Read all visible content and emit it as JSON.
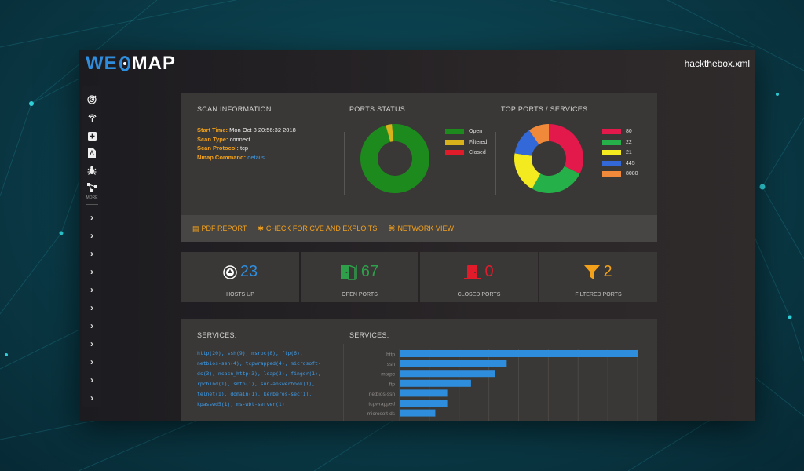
{
  "app": {
    "logo_left": "WE",
    "logo_right": "MAP",
    "filename": "hackthebox.xml"
  },
  "sidebar": {
    "icons": [
      "radar-icon",
      "antenna-icon",
      "plus-box-icon",
      "pdf-file-icon",
      "bug-icon",
      "network-icon"
    ],
    "more_label": "MORE",
    "arrow_count": 11
  },
  "scan_info": {
    "title": "SCAN INFORMATION",
    "start_time_label": "Start Time:",
    "start_time": "Mon Oct 8 20:56:32 2018",
    "scan_type_label": "Scan Type:",
    "scan_type": "connect",
    "scan_protocol_label": "Scan Protocol:",
    "scan_protocol": "tcp",
    "nmap_command_label": "Nmap Command:",
    "nmap_command": "details"
  },
  "ports_status": {
    "title": "PORTS STATUS",
    "legend": [
      {
        "label": "Open",
        "color": "#1d8a1d",
        "value": 67
      },
      {
        "label": "Filtered",
        "color": "#d8b21a",
        "value": 2
      },
      {
        "label": "Closed",
        "color": "#e21b2b",
        "value": 0
      }
    ]
  },
  "top_ports": {
    "title": "TOP PORTS / SERVICES",
    "legend": [
      {
        "label": "80",
        "color": "#e3184b",
        "value": 20
      },
      {
        "label": "22",
        "color": "#25b04a",
        "value": 16
      },
      {
        "label": "21",
        "color": "#f4ea20",
        "value": 12
      },
      {
        "label": "445",
        "color": "#3368d8",
        "value": 8
      },
      {
        "label": "8080",
        "color": "#f08a3a",
        "value": 6
      }
    ]
  },
  "actions": {
    "pdf_report": "PDF REPORT",
    "check_cve": "CHECK FOR CVE AND EXPLOITS",
    "network_view": "NETWORK VIEW"
  },
  "stats": [
    {
      "value": "23",
      "label": "HOSTS UP",
      "color": "#2e8ddd",
      "icon": "host-icon"
    },
    {
      "value": "67",
      "label": "OPEN PORTS",
      "color": "#2ea04a",
      "icon": "open-door-icon"
    },
    {
      "value": "0",
      "label": "CLOSED PORTS",
      "color": "#e21b2b",
      "icon": "closed-door-icon"
    },
    {
      "value": "2",
      "label": "FILTERED PORTS",
      "color": "#f3a11a",
      "icon": "filter-icon"
    }
  ],
  "services": {
    "title_left": "SERVICES:",
    "title_right": "SERVICES:",
    "list_lines": [
      "http(20), ssh(9), msrpc(8), ftp(6),",
      "netbios-ssn(4), tcpwrapped(4), microsoft-",
      "ds(3), ncacn_http(3), ldap(3), finger(1),",
      "rpcbind(1), smtp(1), sun-answerbook(1),",
      "telnet(1), domain(1), kerberos-sec(1),",
      "kpasswd5(1), ms-wbt-server(1)"
    ]
  },
  "chart_data": {
    "type": "bar",
    "orientation": "horizontal",
    "categories": [
      "http",
      "ssh",
      "msrpc",
      "ftp",
      "netbios-ssn",
      "tcpwrapped",
      "microsoft-ds"
    ],
    "values": [
      20,
      9,
      8,
      6,
      4,
      4,
      3
    ],
    "color": "#2e8ddd",
    "grid": true
  }
}
